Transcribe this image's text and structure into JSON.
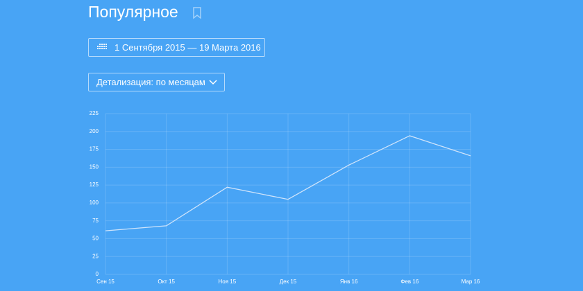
{
  "header": {
    "title": "Популярное"
  },
  "controls": {
    "date_range": "1 Сентября 2015 — 19 Марта 2016",
    "detail": "Детализация: по месяцам"
  },
  "chart_data": {
    "type": "line",
    "categories": [
      "Сен 15",
      "Окт 15",
      "Ноя 15",
      "Дек 15",
      "Янв 16",
      "Фев 16",
      "Мар 16"
    ],
    "values": [
      61,
      68,
      122,
      105,
      153,
      194,
      166
    ],
    "color": "#cfe4fb",
    "ylim": [
      0,
      225
    ],
    "yticks": [
      0,
      25,
      50,
      75,
      100,
      125,
      150,
      175,
      200,
      225
    ],
    "grid": true
  }
}
